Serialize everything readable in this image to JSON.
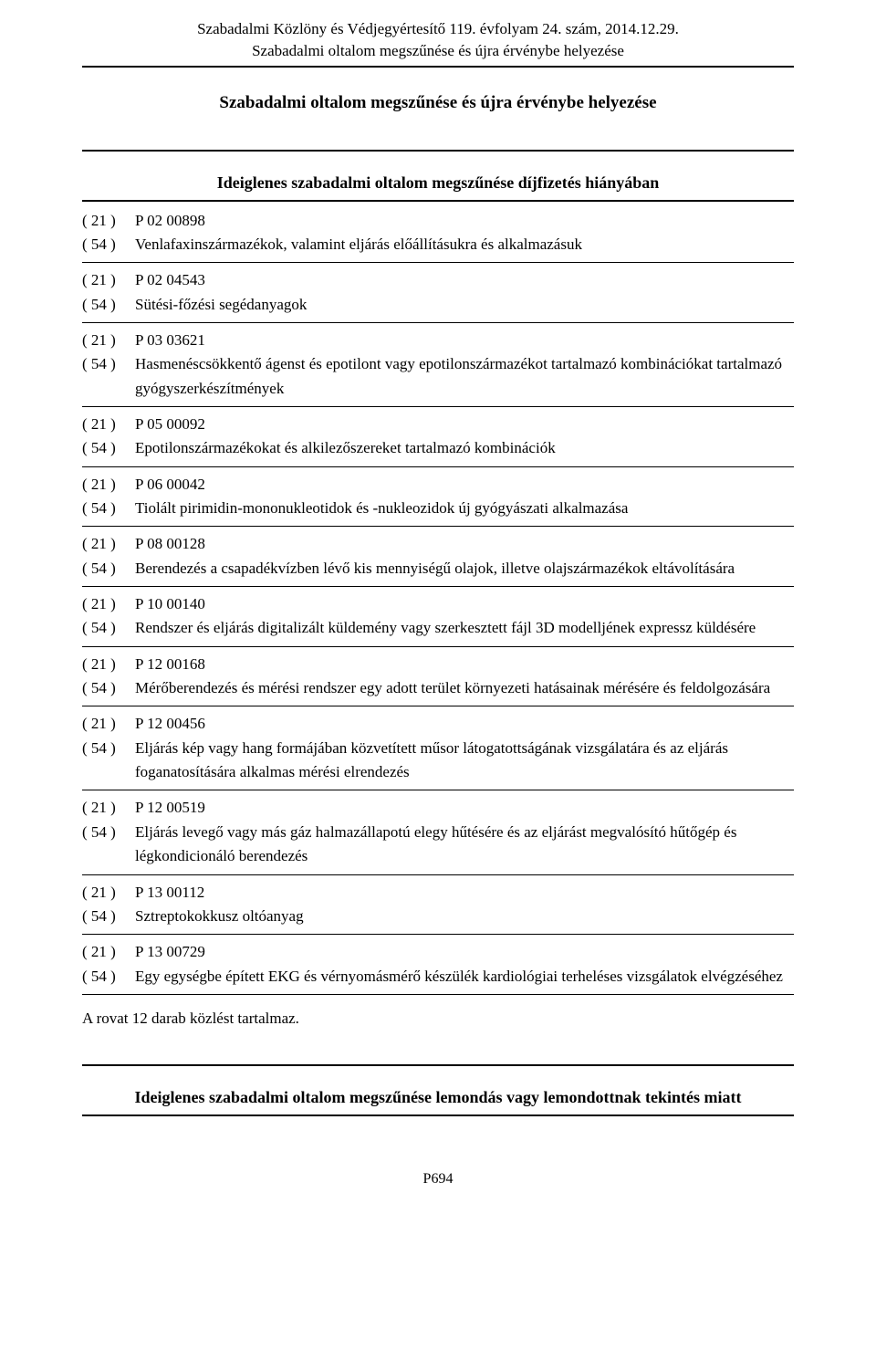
{
  "header": {
    "line1": "Szabadalmi Közlöny és Védjegyértesítő 119. évfolyam 24. szám, 2014.12.29.",
    "line2": "Szabadalmi oltalom megszűnése és újra érvénybe helyezése"
  },
  "main_title": "Szabadalmi oltalom megszűnése és újra érvénybe helyezése",
  "section1_title": "Ideiglenes szabadalmi oltalom megszűnése díjfizetés hiányában",
  "entries": [
    {
      "c21": "( 21 )",
      "v21": "P 02 00898",
      "c54": "( 54 )",
      "v54": "Venlafaxinszármazékok, valamint eljárás előállításukra és alkalmazásuk"
    },
    {
      "c21": "( 21 )",
      "v21": "P 02 04543",
      "c54": "( 54 )",
      "v54": "Sütési-főzési segédanyagok"
    },
    {
      "c21": "( 21 )",
      "v21": "P 03 03621",
      "c54": "( 54 )",
      "v54": "Hasmenéscsökkentő ágenst és epotilont vagy epotilonszármazékot tartalmazó kombinációkat tartalmazó gyógyszerkészítmények"
    },
    {
      "c21": "( 21 )",
      "v21": "P 05 00092",
      "c54": "( 54 )",
      "v54": "Epotilonszármazékokat és alkilezőszereket tartalmazó kombinációk"
    },
    {
      "c21": "( 21 )",
      "v21": "P 06 00042",
      "c54": "( 54 )",
      "v54": "Tiolált pirimidin-mononukleotidok és -nukleozidok új gyógyászati alkalmazása"
    },
    {
      "c21": "( 21 )",
      "v21": "P 08 00128",
      "c54": "( 54 )",
      "v54": "Berendezés a csapadékvízben lévő kis mennyiségű olajok, illetve olajszármazékok eltávolítására"
    },
    {
      "c21": "( 21 )",
      "v21": "P 10 00140",
      "c54": "( 54 )",
      "v54": "Rendszer és eljárás digitalizált küldemény vagy szerkesztett fájl 3D modelljének expressz küldésére"
    },
    {
      "c21": "( 21 )",
      "v21": "P 12 00168",
      "c54": "( 54 )",
      "v54": "Mérőberendezés és mérési rendszer egy adott terület környezeti hatásainak mérésére és feldolgozására"
    },
    {
      "c21": "( 21 )",
      "v21": "P 12 00456",
      "c54": "( 54 )",
      "v54": "Eljárás kép vagy hang formájában közvetített műsor látogatottságának vizsgálatára és az eljárás foganatosítására alkalmas mérési elrendezés"
    },
    {
      "c21": "( 21 )",
      "v21": "P 12 00519",
      "c54": "( 54 )",
      "v54": "Eljárás levegő vagy más gáz halmazállapotú elegy hűtésére és az eljárást megvalósító hűtőgép és légkondicionáló berendezés"
    },
    {
      "c21": "( 21 )",
      "v21": "P 13 00112",
      "c54": "( 54 )",
      "v54": "Sztreptokokkusz oltóanyag"
    },
    {
      "c21": "( 21 )",
      "v21": "P 13 00729",
      "c54": "( 54 )",
      "v54": "Egy egységbe épített EKG és vérnyomásmérő készülék kardiológiai terheléses vizsgálatok elvégzéséhez"
    }
  ],
  "summary": "A rovat 12 darab közlést tartalmaz.",
  "section2_title": "Ideiglenes szabadalmi oltalom megszűnése lemondás vagy lemondottnak tekintés miatt",
  "page_number": "P694"
}
